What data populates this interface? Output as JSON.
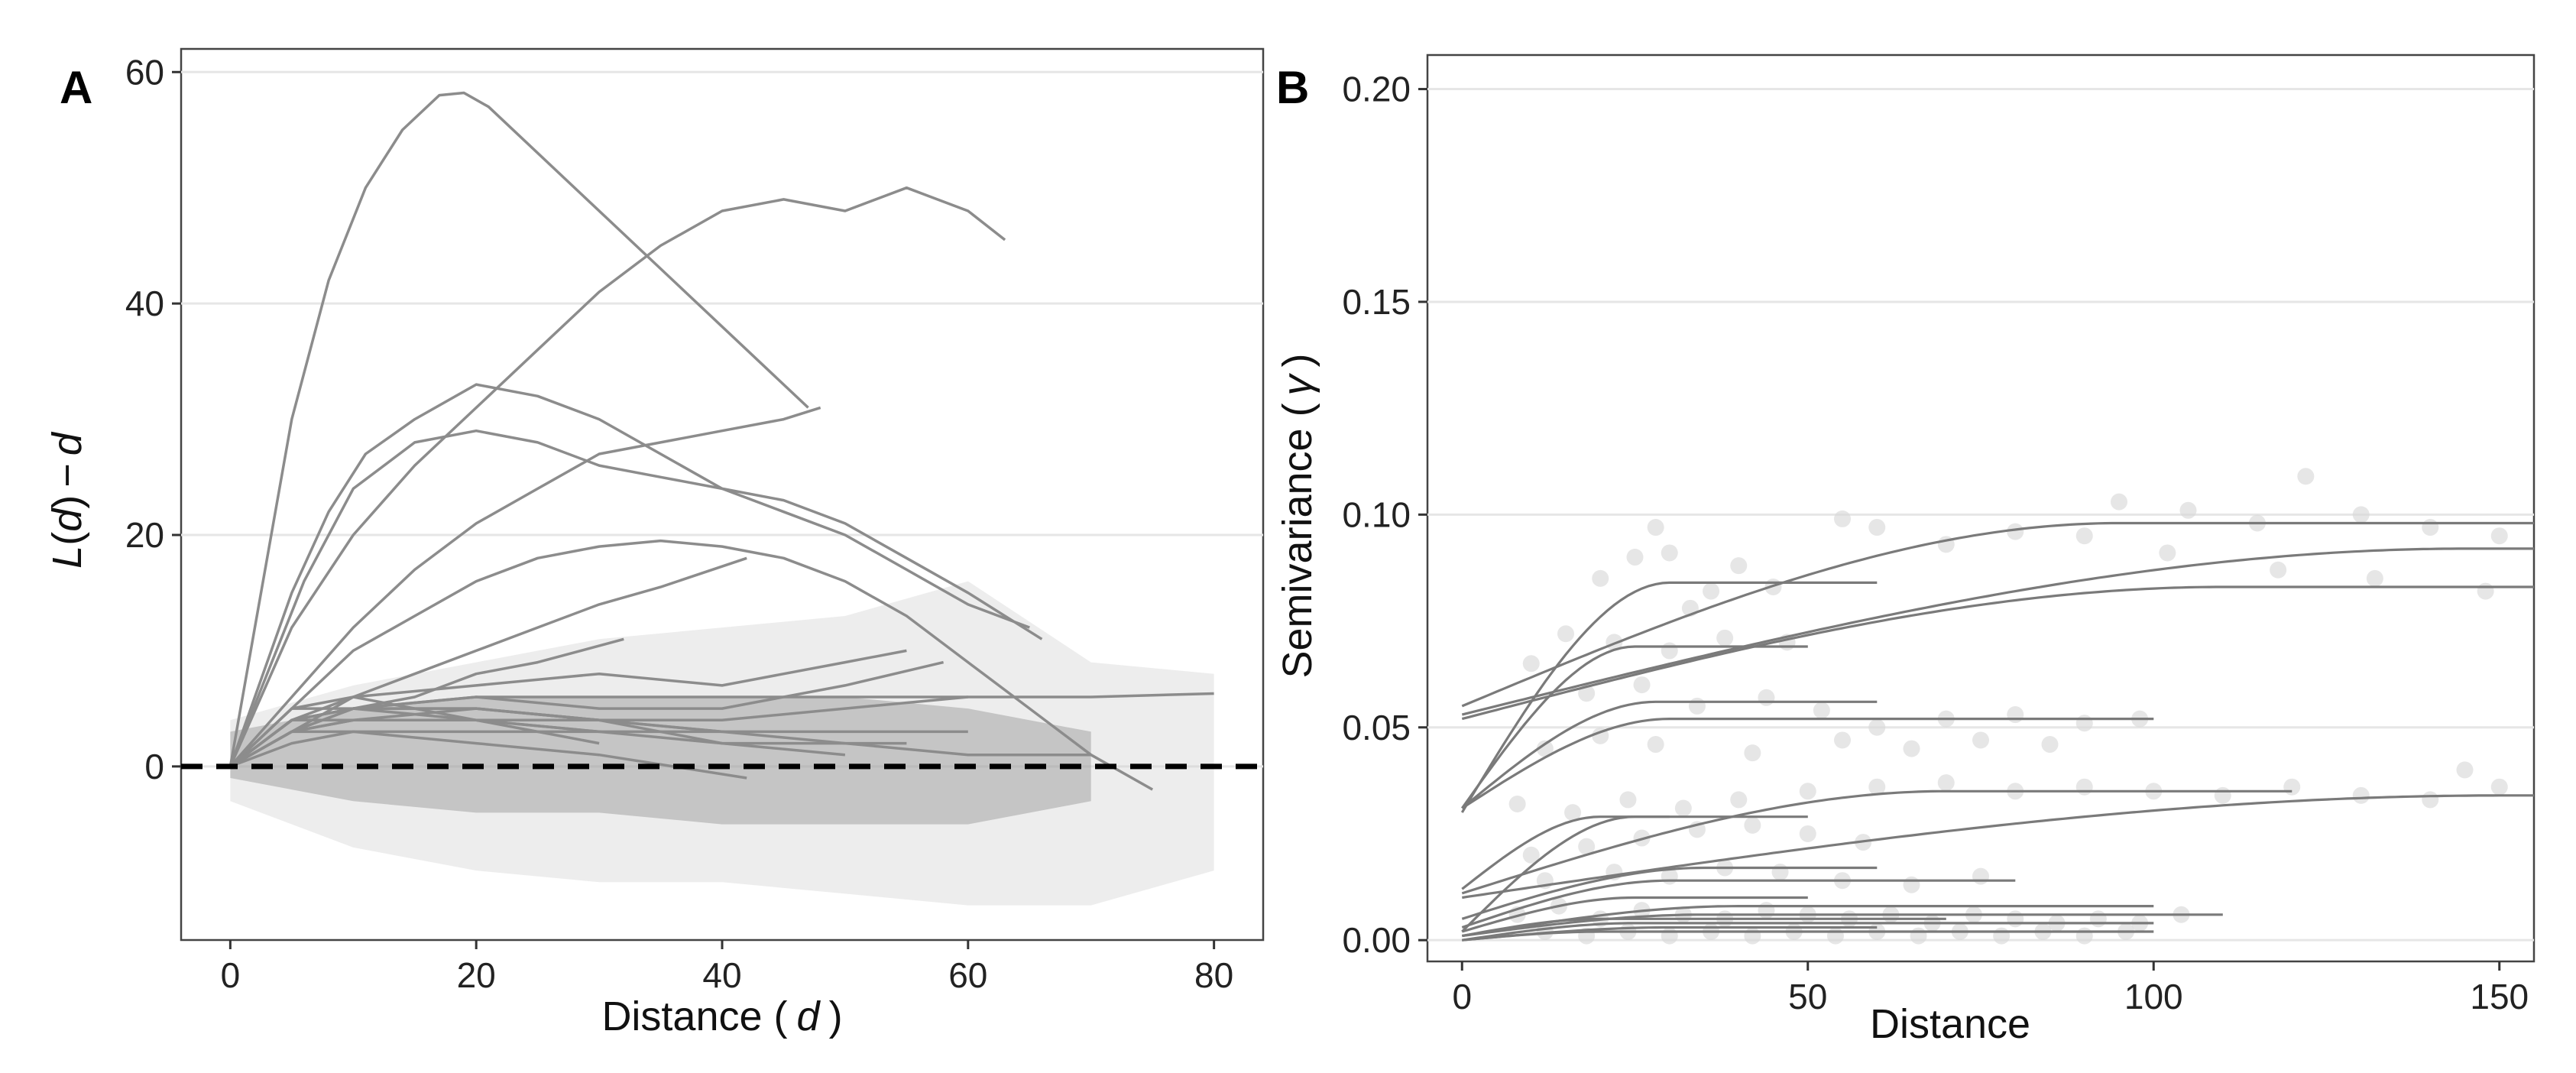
{
  "figure": {
    "panel_a_label": "A",
    "panel_b_label": "B"
  },
  "chart_data": [
    {
      "panel": "A",
      "type": "line",
      "title": "",
      "xlabel_main": "Distance (",
      "xlabel_var": "d",
      "xlabel_close": ")",
      "ylabel_func": "L",
      "ylabel_open": "(",
      "ylabel_var1": "d",
      "ylabel_close": ")",
      "ylabel_minus": "−",
      "ylabel_var2": "d",
      "xlim": [
        -4,
        84
      ],
      "ylim": [
        -15,
        62
      ],
      "xticks": [
        "0",
        "20",
        "40",
        "60",
        "80"
      ],
      "yticks": [
        "0",
        "20",
        "40",
        "60"
      ],
      "grid": "horizontal",
      "reference_line": {
        "y": 0,
        "style": "dashed",
        "color": "#000000"
      },
      "envelope_band": {
        "x": [
          0,
          10,
          20,
          30,
          40,
          50,
          60,
          70,
          80
        ],
        "upper": [
          4,
          7,
          9,
          11,
          12,
          13,
          16,
          9,
          8
        ],
        "lower": [
          -3,
          -7,
          -9,
          -10,
          -10,
          -11,
          -12,
          -12,
          -9
        ]
      },
      "envelope_inner": {
        "x": [
          0,
          10,
          20,
          30,
          40,
          50,
          60,
          70
        ],
        "upper": [
          3,
          5,
          6,
          6,
          6,
          6,
          5,
          3
        ],
        "lower": [
          -1,
          -3,
          -4,
          -4,
          -5,
          -5,
          -5,
          -3
        ]
      },
      "series": [
        {
          "name": "s1",
          "x": [
            0,
            2,
            5,
            8,
            11,
            14,
            17,
            19,
            21,
            47
          ],
          "y": [
            0,
            12,
            30,
            42,
            50,
            55,
            58,
            58.2,
            57,
            31
          ]
        },
        {
          "name": "s2",
          "x": [
            0,
            5,
            10,
            15,
            20,
            25,
            30,
            35,
            40,
            45,
            50,
            55,
            60,
            63
          ],
          "y": [
            0,
            12,
            20,
            26,
            31,
            36,
            41,
            45,
            48,
            49,
            48,
            50,
            48,
            45.5
          ]
        },
        {
          "name": "s3",
          "x": [
            0,
            2,
            5,
            8,
            11,
            15,
            20,
            25,
            30,
            35,
            40,
            45,
            50,
            55,
            60,
            66
          ],
          "y": [
            0,
            6,
            15,
            22,
            27,
            30,
            33,
            32,
            30,
            27,
            24,
            23,
            21,
            18,
            15,
            11
          ]
        },
        {
          "name": "s4",
          "x": [
            0,
            3,
            6,
            10,
            15,
            20,
            25,
            30,
            35,
            40,
            45,
            50,
            55,
            60,
            65
          ],
          "y": [
            0,
            8,
            16,
            24,
            28,
            29,
            28,
            26,
            25,
            24,
            22,
            20,
            17,
            14,
            12
          ]
        },
        {
          "name": "s5",
          "x": [
            0,
            5,
            10,
            15,
            20,
            25,
            30,
            35,
            40,
            45,
            48
          ],
          "y": [
            0,
            6,
            12,
            17,
            21,
            24,
            27,
            28,
            29,
            30,
            31
          ]
        },
        {
          "name": "s6",
          "x": [
            0,
            5,
            10,
            15,
            20,
            25,
            30,
            35,
            40,
            45,
            50,
            55,
            60,
            65,
            70,
            75
          ],
          "y": [
            0,
            5,
            10,
            13,
            16,
            18,
            19,
            19.5,
            19,
            18,
            16,
            13,
            9,
            5,
            1,
            -2
          ]
        },
        {
          "name": "s7",
          "x": [
            0,
            5,
            10,
            15,
            20,
            25,
            30,
            35,
            42
          ],
          "y": [
            0,
            3,
            6,
            8,
            10,
            12,
            14,
            15.5,
            18
          ]
        },
        {
          "name": "s8",
          "x": [
            0,
            5,
            10,
            15,
            20,
            25,
            32
          ],
          "y": [
            0,
            3,
            5,
            6,
            8,
            9,
            11
          ]
        },
        {
          "name": "s9",
          "x": [
            0,
            5,
            10,
            20,
            30,
            40,
            50,
            55
          ],
          "y": [
            0,
            5,
            6,
            7,
            8,
            7,
            9,
            10
          ]
        },
        {
          "name": "s10",
          "x": [
            0,
            5,
            10,
            20,
            30,
            40,
            50,
            60,
            70,
            80
          ],
          "y": [
            0,
            4,
            5,
            6,
            6,
            6,
            6,
            6,
            6,
            6.3
          ]
        },
        {
          "name": "s11",
          "x": [
            0,
            5,
            10,
            20,
            30,
            40,
            50,
            58
          ],
          "y": [
            0,
            4,
            5,
            6,
            5,
            5,
            7,
            9
          ]
        },
        {
          "name": "s12",
          "x": [
            0,
            5,
            10,
            20,
            30,
            40,
            50,
            60
          ],
          "y": [
            0,
            3,
            5,
            5,
            4,
            4,
            5,
            6
          ]
        },
        {
          "name": "s13",
          "x": [
            0,
            5,
            10,
            20,
            30,
            40,
            50,
            55
          ],
          "y": [
            0,
            4,
            5,
            5,
            4,
            3,
            2,
            2
          ]
        },
        {
          "name": "s14",
          "x": [
            0,
            5,
            10,
            20,
            30,
            40,
            50,
            60
          ],
          "y": [
            0,
            3,
            4,
            4,
            3,
            3,
            3,
            3
          ]
        },
        {
          "name": "s15",
          "x": [
            0,
            5,
            10,
            20,
            30,
            40
          ],
          "y": [
            0,
            5,
            5,
            4,
            4,
            3
          ]
        },
        {
          "name": "s16",
          "x": [
            0,
            5,
            10,
            20,
            30
          ],
          "y": [
            0,
            4,
            4,
            4,
            3
          ]
        },
        {
          "name": "s17",
          "x": [
            0,
            5,
            10,
            20,
            30,
            40,
            50
          ],
          "y": [
            0,
            3,
            4,
            5,
            4,
            2,
            1
          ]
        },
        {
          "name": "s18",
          "x": [
            0,
            5,
            10,
            15,
            20,
            25,
            30
          ],
          "y": [
            0,
            4,
            6,
            5,
            4,
            3,
            2
          ]
        },
        {
          "name": "s19",
          "x": [
            0,
            5,
            10,
            20,
            30,
            40,
            50,
            60,
            70
          ],
          "y": [
            0,
            3,
            3,
            3,
            3,
            2,
            2,
            1,
            1
          ]
        },
        {
          "name": "s20",
          "x": [
            0,
            5,
            10,
            20,
            30,
            42
          ],
          "y": [
            0,
            2,
            3,
            2,
            1,
            -1
          ]
        }
      ]
    },
    {
      "panel": "B",
      "type": "scatter",
      "title": "",
      "xlabel": "Distance",
      "ylabel_main": "Semivariance (",
      "ylabel_symbol": "γ",
      "ylabel_close": ")",
      "xlim": [
        -5,
        155
      ],
      "ylim": [
        -0.005,
        0.208
      ],
      "xticks": [
        "0",
        "50",
        "100",
        "150"
      ],
      "yticks": [
        "0.00",
        "0.05",
        "0.10",
        "0.15",
        "0.20"
      ],
      "grid": "horizontal",
      "fitted_models": [
        {
          "name": "m1",
          "nugget": 0.055,
          "sill": 0.098,
          "range": 95,
          "max_x": 155
        },
        {
          "name": "m2",
          "nugget": 0.053,
          "sill": 0.092,
          "range": 145,
          "max_x": 155
        },
        {
          "name": "m3",
          "nugget": 0.052,
          "sill": 0.083,
          "range": 110,
          "max_x": 155
        },
        {
          "name": "m4",
          "nugget": 0.03,
          "sill": 0.084,
          "range": 30,
          "max_x": 60
        },
        {
          "name": "m5",
          "nugget": 0.031,
          "sill": 0.069,
          "range": 25,
          "max_x": 50
        },
        {
          "name": "m6",
          "nugget": 0.031,
          "sill": 0.056,
          "range": 28,
          "max_x": 60
        },
        {
          "name": "m7",
          "nugget": 0.031,
          "sill": 0.052,
          "range": 30,
          "max_x": 100
        },
        {
          "name": "m8",
          "nugget": 0.011,
          "sill": 0.035,
          "range": 70,
          "max_x": 120
        },
        {
          "name": "m9",
          "nugget": 0.01,
          "sill": 0.034,
          "range": 150,
          "max_x": 155
        },
        {
          "name": "m10",
          "nugget": 0.012,
          "sill": 0.029,
          "range": 20,
          "max_x": 50
        },
        {
          "name": "m11",
          "nugget": 0.002,
          "sill": 0.029,
          "range": 25,
          "max_x": 30
        },
        {
          "name": "m12",
          "nugget": 0.005,
          "sill": 0.017,
          "range": 35,
          "max_x": 60
        },
        {
          "name": "m13",
          "nugget": 0.003,
          "sill": 0.014,
          "range": 30,
          "max_x": 80
        },
        {
          "name": "m14",
          "nugget": 0.002,
          "sill": 0.01,
          "range": 25,
          "max_x": 50
        },
        {
          "name": "m15",
          "nugget": 0.001,
          "sill": 0.008,
          "range": 40,
          "max_x": 100
        },
        {
          "name": "m16",
          "nugget": 0.001,
          "sill": 0.006,
          "range": 35,
          "max_x": 110
        },
        {
          "name": "m17",
          "nugget": 0.001,
          "sill": 0.005,
          "range": 20,
          "max_x": 70
        },
        {
          "name": "m18",
          "nugget": 0.0,
          "sill": 0.004,
          "range": 25,
          "max_x": 100
        },
        {
          "name": "m19",
          "nugget": 0.0,
          "sill": 0.003,
          "range": 30,
          "max_x": 60
        },
        {
          "name": "m20",
          "nugget": 0.0,
          "sill": 0.002,
          "range": 20,
          "max_x": 100
        }
      ],
      "empirical_points": [
        {
          "x": 20,
          "y": 0.085
        },
        {
          "x": 25,
          "y": 0.09
        },
        {
          "x": 28,
          "y": 0.097
        },
        {
          "x": 30,
          "y": 0.091
        },
        {
          "x": 33,
          "y": 0.078
        },
        {
          "x": 36,
          "y": 0.082
        },
        {
          "x": 40,
          "y": 0.088
        },
        {
          "x": 45,
          "y": 0.083
        },
        {
          "x": 55,
          "y": 0.099
        },
        {
          "x": 60,
          "y": 0.097
        },
        {
          "x": 70,
          "y": 0.093
        },
        {
          "x": 80,
          "y": 0.096
        },
        {
          "x": 90,
          "y": 0.095
        },
        {
          "x": 95,
          "y": 0.103
        },
        {
          "x": 105,
          "y": 0.101
        },
        {
          "x": 115,
          "y": 0.098
        },
        {
          "x": 122,
          "y": 0.109
        },
        {
          "x": 130,
          "y": 0.1
        },
        {
          "x": 140,
          "y": 0.097
        },
        {
          "x": 150,
          "y": 0.095
        },
        {
          "x": 102,
          "y": 0.091
        },
        {
          "x": 118,
          "y": 0.087
        },
        {
          "x": 132,
          "y": 0.085
        },
        {
          "x": 148,
          "y": 0.082
        },
        {
          "x": 10,
          "y": 0.065
        },
        {
          "x": 15,
          "y": 0.072
        },
        {
          "x": 22,
          "y": 0.07
        },
        {
          "x": 30,
          "y": 0.068
        },
        {
          "x": 38,
          "y": 0.071
        },
        {
          "x": 47,
          "y": 0.07
        },
        {
          "x": 18,
          "y": 0.058
        },
        {
          "x": 26,
          "y": 0.06
        },
        {
          "x": 34,
          "y": 0.055
        },
        {
          "x": 44,
          "y": 0.057
        },
        {
          "x": 52,
          "y": 0.054
        },
        {
          "x": 60,
          "y": 0.05
        },
        {
          "x": 70,
          "y": 0.052
        },
        {
          "x": 80,
          "y": 0.053
        },
        {
          "x": 90,
          "y": 0.051
        },
        {
          "x": 98,
          "y": 0.052
        },
        {
          "x": 12,
          "y": 0.045
        },
        {
          "x": 20,
          "y": 0.048
        },
        {
          "x": 28,
          "y": 0.046
        },
        {
          "x": 42,
          "y": 0.044
        },
        {
          "x": 55,
          "y": 0.047
        },
        {
          "x": 65,
          "y": 0.045
        },
        {
          "x": 75,
          "y": 0.047
        },
        {
          "x": 85,
          "y": 0.046
        },
        {
          "x": 8,
          "y": 0.032
        },
        {
          "x": 16,
          "y": 0.03
        },
        {
          "x": 24,
          "y": 0.033
        },
        {
          "x": 32,
          "y": 0.031
        },
        {
          "x": 40,
          "y": 0.033
        },
        {
          "x": 50,
          "y": 0.035
        },
        {
          "x": 60,
          "y": 0.036
        },
        {
          "x": 70,
          "y": 0.037
        },
        {
          "x": 80,
          "y": 0.035
        },
        {
          "x": 90,
          "y": 0.036
        },
        {
          "x": 100,
          "y": 0.035
        },
        {
          "x": 110,
          "y": 0.034
        },
        {
          "x": 120,
          "y": 0.036
        },
        {
          "x": 130,
          "y": 0.034
        },
        {
          "x": 140,
          "y": 0.033
        },
        {
          "x": 150,
          "y": 0.036
        },
        {
          "x": 10,
          "y": 0.02
        },
        {
          "x": 18,
          "y": 0.022
        },
        {
          "x": 26,
          "y": 0.024
        },
        {
          "x": 34,
          "y": 0.026
        },
        {
          "x": 42,
          "y": 0.027
        },
        {
          "x": 50,
          "y": 0.025
        },
        {
          "x": 58,
          "y": 0.023
        },
        {
          "x": 12,
          "y": 0.014
        },
        {
          "x": 22,
          "y": 0.016
        },
        {
          "x": 30,
          "y": 0.015
        },
        {
          "x": 38,
          "y": 0.017
        },
        {
          "x": 46,
          "y": 0.016
        },
        {
          "x": 55,
          "y": 0.014
        },
        {
          "x": 65,
          "y": 0.013
        },
        {
          "x": 75,
          "y": 0.015
        },
        {
          "x": 8,
          "y": 0.006
        },
        {
          "x": 14,
          "y": 0.008
        },
        {
          "x": 20,
          "y": 0.005
        },
        {
          "x": 26,
          "y": 0.007
        },
        {
          "x": 32,
          "y": 0.006
        },
        {
          "x": 38,
          "y": 0.005
        },
        {
          "x": 44,
          "y": 0.007
        },
        {
          "x": 50,
          "y": 0.006
        },
        {
          "x": 56,
          "y": 0.005
        },
        {
          "x": 62,
          "y": 0.006
        },
        {
          "x": 68,
          "y": 0.004
        },
        {
          "x": 74,
          "y": 0.006
        },
        {
          "x": 80,
          "y": 0.005
        },
        {
          "x": 86,
          "y": 0.004
        },
        {
          "x": 92,
          "y": 0.005
        },
        {
          "x": 98,
          "y": 0.004
        },
        {
          "x": 104,
          "y": 0.006
        },
        {
          "x": 12,
          "y": 0.002
        },
        {
          "x": 18,
          "y": 0.001
        },
        {
          "x": 24,
          "y": 0.002
        },
        {
          "x": 30,
          "y": 0.001
        },
        {
          "x": 36,
          "y": 0.002
        },
        {
          "x": 42,
          "y": 0.001
        },
        {
          "x": 48,
          "y": 0.002
        },
        {
          "x": 54,
          "y": 0.001
        },
        {
          "x": 60,
          "y": 0.002
        },
        {
          "x": 66,
          "y": 0.001
        },
        {
          "x": 72,
          "y": 0.002
        },
        {
          "x": 78,
          "y": 0.001
        },
        {
          "x": 84,
          "y": 0.002
        },
        {
          "x": 90,
          "y": 0.001
        },
        {
          "x": 96,
          "y": 0.002
        },
        {
          "x": 145,
          "y": 0.04
        }
      ]
    }
  ]
}
